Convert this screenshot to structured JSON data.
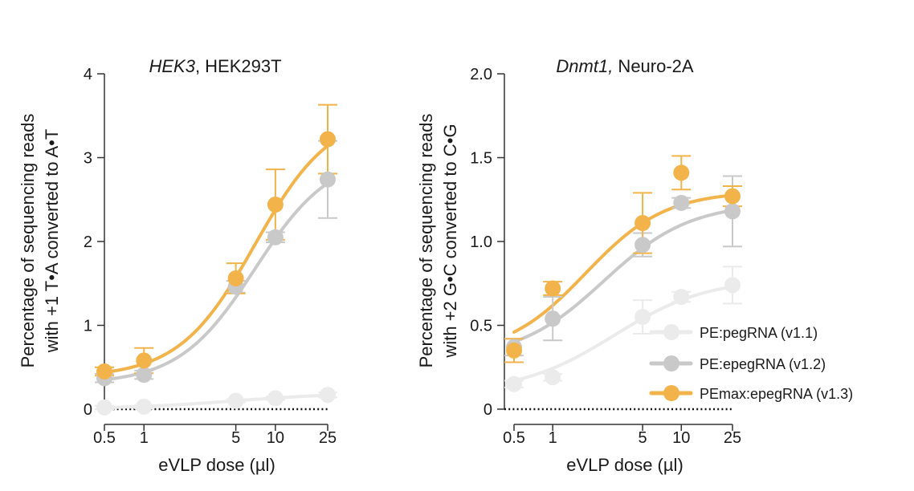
{
  "colors": {
    "v11": "#ebebeb",
    "v12": "#c9c9c9",
    "v13": "#f2b34b",
    "axis": "#333333",
    "baseline": "#111111"
  },
  "legend": [
    {
      "name": "PE:pegRNA (v1.1)",
      "color_key": "v11"
    },
    {
      "name": "PE:epegRNA (v1.2)",
      "color_key": "v12"
    },
    {
      "name": "PEmax:epegRNA (v1.3)",
      "color_key": "v13"
    }
  ],
  "chart_data": [
    {
      "type": "scatter",
      "title_italic": "HEK3",
      "title_rest": ", HEK293T",
      "xlabel": "eVLP dose (µl)",
      "ylabel_line1": "Percentage of sequencing reads",
      "ylabel_line2": "with +1 T•A converted to A•T",
      "xscale": "log",
      "xlim": [
        0.5,
        25
      ],
      "xticks": [
        0.5,
        1,
        5,
        10,
        25
      ],
      "xtick_labels": [
        "0.5",
        "1",
        "5",
        "10",
        "25"
      ],
      "ylim": [
        0,
        4
      ],
      "yticks": [
        0,
        1,
        2,
        3,
        4
      ],
      "ytick_labels": [
        "0",
        "1",
        "2",
        "3",
        "4"
      ],
      "x": [
        0.5,
        1,
        5,
        10,
        25
      ],
      "series": [
        {
          "name": "PE:pegRNA (v1.1)",
          "color_key": "v11",
          "values": [
            0.02,
            0.03,
            0.1,
            0.13,
            0.17
          ],
          "err": [
            0.02,
            0.02,
            0.02,
            0.02,
            0.03
          ],
          "fit": {
            "bottom": 0.0,
            "top": 0.2,
            "ec50": 5,
            "hill": 1
          }
        },
        {
          "name": "PE:epegRNA (v1.2)",
          "color_key": "v12",
          "values": [
            0.37,
            0.41,
            1.46,
            2.05,
            2.74
          ],
          "err": [
            0.05,
            0.05,
            0.07,
            0.06,
            0.46
          ],
          "fit": {
            "bottom": 0.3,
            "top": 3.05,
            "ec50": 7,
            "hill": 1.5
          }
        },
        {
          "name": "PEmax:epegRNA (v1.3)",
          "color_key": "v13",
          "values": [
            0.45,
            0.58,
            1.56,
            2.44,
            3.22
          ],
          "err": [
            0.05,
            0.15,
            0.18,
            0.42,
            0.41
          ],
          "fit": {
            "bottom": 0.38,
            "top": 3.55,
            "ec50": 7,
            "hill": 1.5
          }
        }
      ]
    },
    {
      "type": "scatter",
      "title_italic": "Dnmt1,",
      "title_rest": " Neuro-2A",
      "xlabel": "eVLP dose (µl)",
      "ylabel_line1": "Percentage of sequencing reads",
      "ylabel_line2": "with +2 G•C converted to C•G",
      "xscale": "log",
      "xlim": [
        0.5,
        25
      ],
      "xticks": [
        0.5,
        1,
        5,
        10,
        25
      ],
      "xtick_labels": [
        "0.5",
        "1",
        "5",
        "10",
        "25"
      ],
      "ylim": [
        0,
        2
      ],
      "yticks": [
        0,
        0.5,
        1,
        1.5,
        2
      ],
      "ytick_labels": [
        "0",
        "0.5",
        "1.0",
        "1.5",
        "2.0"
      ],
      "x": [
        0.5,
        1,
        5,
        10,
        25
      ],
      "series": [
        {
          "name": "PE:pegRNA (v1.1)",
          "color_key": "v11",
          "values": [
            0.15,
            0.19,
            0.55,
            0.67,
            0.74
          ],
          "err": [
            0.02,
            0.02,
            0.1,
            0.03,
            0.11
          ],
          "fit": {
            "bottom": 0.1,
            "top": 0.78,
            "ec50": 3,
            "hill": 1.2
          }
        },
        {
          "name": "PE:epegRNA (v1.2)",
          "color_key": "v12",
          "values": [
            0.37,
            0.54,
            0.98,
            1.23,
            1.18
          ],
          "err": [
            0.05,
            0.13,
            0.07,
            0.03,
            0.21
          ],
          "fit": {
            "bottom": 0.3,
            "top": 1.23,
            "ec50": 2.5,
            "hill": 1.3
          }
        },
        {
          "name": "PEmax:epegRNA (v1.3)",
          "color_key": "v13",
          "values": [
            0.35,
            0.72,
            1.11,
            1.41,
            1.27
          ],
          "err": [
            0.07,
            0.04,
            0.18,
            0.1,
            0.06
          ],
          "fit": {
            "bottom": 0.32,
            "top": 1.3,
            "ec50": 1.8,
            "hill": 1.4
          }
        }
      ]
    }
  ]
}
